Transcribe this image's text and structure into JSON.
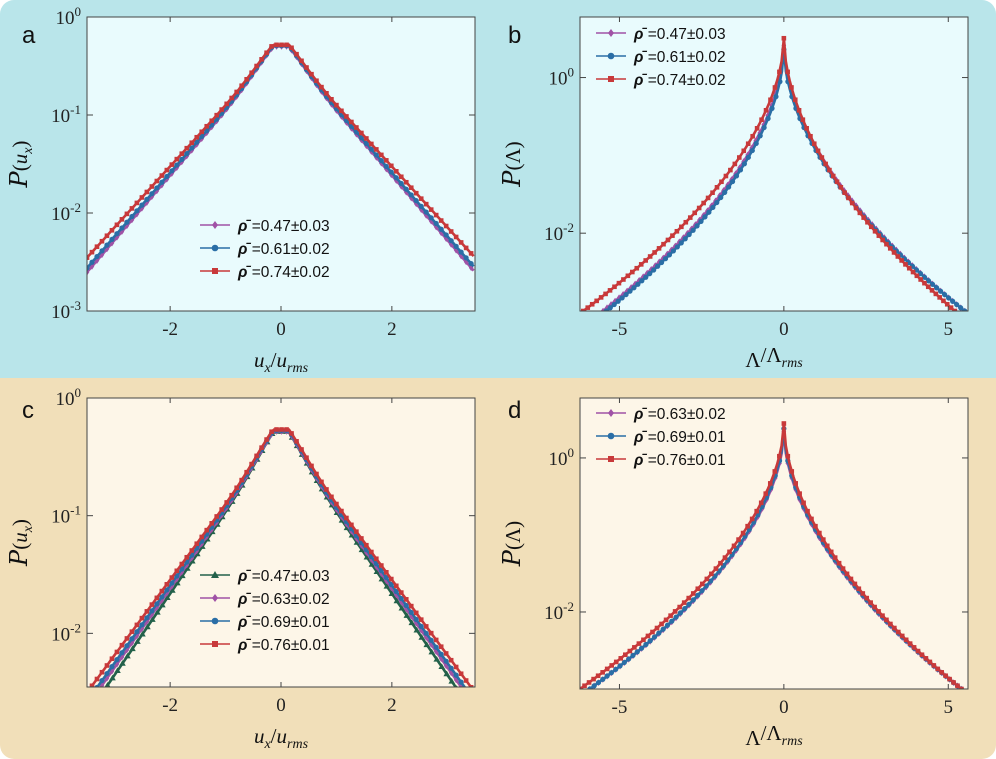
{
  "chart_data": [
    {
      "id": "a",
      "type": "line",
      "panel_label": "a",
      "xlabel": "u_x/u_rms",
      "ylabel": "P(u_x)",
      "yscale": "log",
      "xlim": [
        -3.5,
        3.5
      ],
      "ylim": [
        0.001,
        1
      ],
      "xticks": [
        -2,
        0,
        2
      ],
      "xtick_labels": [
        "-2",
        "0",
        "2"
      ],
      "ytick_labels": [
        {
          "base": "10",
          "exp": "0"
        },
        {
          "base": "10",
          "exp": "-1"
        },
        {
          "base": "10",
          "exp": "-2"
        },
        {
          "base": "10",
          "exp": "-3"
        }
      ],
      "legend_position": "lower-center",
      "series": [
        {
          "name": "0.47±0.03",
          "color": "#a052a6",
          "marker": "diamond",
          "peak": 0.5,
          "scale": 0.66,
          "xmin": -3.5,
          "xmax": 3.5
        },
        {
          "name": "0.61±0.02",
          "color": "#2a6ea6",
          "marker": "circle",
          "peak": 0.51,
          "scale": 0.67,
          "xmin": -3.5,
          "xmax": 3.5
        },
        {
          "name": "0.74±0.02",
          "color": "#c8393a",
          "marker": "square",
          "peak": 0.52,
          "scale": 0.7,
          "xmin": -3.5,
          "xmax": 3.5
        }
      ]
    },
    {
      "id": "b",
      "type": "line",
      "panel_label": "b",
      "xlabel": "Λ/Λ_rms",
      "ylabel": "P(Λ)",
      "yscale": "log",
      "xlim": [
        -6.2,
        5.6
      ],
      "ylim": [
        0.001,
        6
      ],
      "xticks": [
        -5,
        0,
        5
      ],
      "xtick_labels": [
        "-5",
        "0",
        "5"
      ],
      "ytick_labels": [
        {
          "base": "10",
          "exp": "0"
        },
        {
          "base": "10",
          "exp": "-2"
        }
      ],
      "legend_position": "top-left",
      "series": [
        {
          "name": "0.47±0.03",
          "color": "#a052a6",
          "marker": "diamond",
          "peak": 2.6,
          "left": [
            -5.5,
            0.001
          ],
          "right": [
            5.5,
            0.001
          ]
        },
        {
          "name": "0.61±0.02",
          "color": "#2a6ea6",
          "marker": "circle",
          "peak": 2.3,
          "left": [
            -5.4,
            0.001
          ],
          "right": [
            5.5,
            0.001
          ]
        },
        {
          "name": "0.74±0.02",
          "color": "#c8393a",
          "marker": "square",
          "peak": 3.2,
          "left": [
            -6.1,
            0.001
          ],
          "right": [
            5.2,
            0.001
          ]
        }
      ]
    },
    {
      "id": "c",
      "type": "line",
      "panel_label": "c",
      "xlabel": "u_x/u_rms",
      "ylabel": "P(u_x)",
      "yscale": "log",
      "xlim": [
        -3.5,
        3.5
      ],
      "ylim": [
        0.0035,
        1
      ],
      "xticks": [
        -2,
        0,
        2
      ],
      "xtick_labels": [
        "-2",
        "0",
        "2"
      ],
      "ytick_labels": [
        {
          "base": "10",
          "exp": "0"
        },
        {
          "base": "10",
          "exp": "-1"
        },
        {
          "base": "10",
          "exp": "-2"
        }
      ],
      "legend_position": "lower-center",
      "series": [
        {
          "name": "0.47±0.03",
          "color": "#23614a",
          "marker": "triangle",
          "peak": 0.52,
          "scale": 0.63,
          "xmin": -3.4,
          "xmax": 3.4
        },
        {
          "name": "0.63±0.02",
          "color": "#a052a6",
          "marker": "diamond",
          "peak": 0.52,
          "scale": 0.65,
          "xmin": -3.5,
          "xmax": 3.5
        },
        {
          "name": "0.69±0.01",
          "color": "#2a6ea6",
          "marker": "circle",
          "peak": 0.53,
          "scale": 0.66,
          "xmin": -3.5,
          "xmax": 3.5
        },
        {
          "name": "0.76±0.01",
          "color": "#c8393a",
          "marker": "square",
          "peak": 0.54,
          "scale": 0.68,
          "xmin": -3.5,
          "xmax": 3.5
        }
      ]
    },
    {
      "id": "d",
      "type": "line",
      "panel_label": "d",
      "xlabel": "Λ/Λ_rms",
      "ylabel": "P(Λ)",
      "yscale": "log",
      "xlim": [
        -6.2,
        5.6
      ],
      "ylim": [
        0.001,
        6
      ],
      "xticks": [
        -5,
        0,
        5
      ],
      "xtick_labels": [
        "-5",
        "0",
        "5"
      ],
      "ytick_labels": [
        {
          "base": "10",
          "exp": "0"
        },
        {
          "base": "10",
          "exp": "-2"
        }
      ],
      "legend_position": "top-left",
      "series": [
        {
          "name": "0.63±0.02",
          "color": "#a052a6",
          "marker": "diamond",
          "peak": 2.2,
          "left": [
            -5.9,
            0.001
          ],
          "right": [
            5.4,
            0.001
          ]
        },
        {
          "name": "0.69±0.01",
          "color": "#2a6ea6",
          "marker": "circle",
          "peak": 2.4,
          "left": [
            -5.9,
            0.001
          ],
          "right": [
            5.4,
            0.001
          ]
        },
        {
          "name": "0.76±0.01",
          "color": "#c8393a",
          "marker": "square",
          "peak": 2.8,
          "left": [
            -6.2,
            0.001
          ],
          "right": [
            5.4,
            0.001
          ]
        }
      ]
    }
  ]
}
